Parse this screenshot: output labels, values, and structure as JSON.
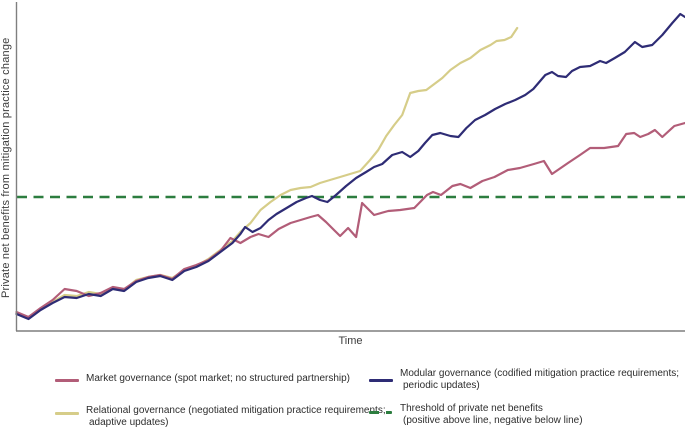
{
  "figure": {
    "xlabel": "Time",
    "ylabel": "Private net benefits from mitigation practice change"
  },
  "legend": {
    "position": "bottom",
    "items": [
      {
        "id": "market",
        "label_line1": "Market governance (spot market; no structured partnership)",
        "label_line2": "",
        "color": "#b25d78",
        "style": "solid"
      },
      {
        "id": "relational",
        "label_line1": "Relational governance (negotiated mitigation practice requirements;",
        "label_line2": "adaptive updates)",
        "color": "#d6cd89",
        "style": "solid"
      },
      {
        "id": "modular",
        "label_line1": "Modular governance (codified mitigation practice requirements;",
        "label_line2": "periodic updates)",
        "color": "#2e2c75",
        "style": "solid"
      },
      {
        "id": "threshold",
        "label_line1": "Threshold of private net benefits",
        "label_line2": "(positive above line, negative below line)",
        "color": "#2c7d3f",
        "style": "dashed"
      }
    ]
  },
  "chart_data": {
    "type": "line",
    "title": "",
    "xlabel": "Time",
    "ylabel": "Private net benefits from mitigation practice change",
    "x_axis": {
      "range": [
        0,
        100
      ],
      "ticks": "none",
      "unit": "time (arbitrary units)"
    },
    "y_axis": {
      "range": [
        -130,
        190
      ],
      "ticks": "none",
      "unit": "net benefit (arbitrary units; threshold = 0)"
    },
    "grid": false,
    "legend_position": "bottom",
    "threshold": {
      "name": "Threshold of private net benefits (positive above line, negative below line)",
      "value": 0,
      "color": "#2c7d3f",
      "style": "dashed"
    },
    "axis_color": "#7f7f7f",
    "series": [
      {
        "id": "relational",
        "name": "Relational governance (negotiated mitigation practice requirements; adaptive updates)",
        "color": "#d6cd89",
        "points": [
          [
            0,
            -116
          ],
          [
            1.8,
            -121
          ],
          [
            3.6,
            -112
          ],
          [
            5.4,
            -105
          ],
          [
            7.2,
            -98
          ],
          [
            9,
            -99
          ],
          [
            10.8,
            -95
          ],
          [
            12.6,
            -97
          ],
          [
            14.4,
            -91
          ],
          [
            16.1,
            -93
          ],
          [
            17.9,
            -83
          ],
          [
            19.7,
            -80
          ],
          [
            21.5,
            -78
          ],
          [
            23.3,
            -81
          ],
          [
            25.1,
            -73
          ],
          [
            26.9,
            -69
          ],
          [
            28.7,
            -62
          ],
          [
            30.5,
            -53
          ],
          [
            32.3,
            -44
          ],
          [
            33.5,
            -35
          ],
          [
            35,
            -26
          ],
          [
            36.5,
            -13
          ],
          [
            38,
            -5
          ],
          [
            39.5,
            2
          ],
          [
            41,
            7
          ],
          [
            42.5,
            9
          ],
          [
            44,
            10
          ],
          [
            45.4,
            14
          ],
          [
            46.9,
            17
          ],
          [
            48.4,
            20
          ],
          [
            49.9,
            23
          ],
          [
            51.4,
            26
          ],
          [
            52.9,
            37
          ],
          [
            54.1,
            47
          ],
          [
            55.3,
            61
          ],
          [
            56.5,
            72
          ],
          [
            57.7,
            82
          ],
          [
            58.9,
            104
          ],
          [
            60.1,
            106
          ],
          [
            61.3,
            107
          ],
          [
            62.5,
            113
          ],
          [
            63.7,
            119
          ],
          [
            64.9,
            127
          ],
          [
            66.4,
            134
          ],
          [
            67.9,
            139
          ],
          [
            69.4,
            147
          ],
          [
            70.9,
            152
          ],
          [
            71.8,
            156
          ],
          [
            73,
            157
          ],
          [
            74,
            160
          ],
          [
            74.9,
            169
          ]
        ]
      },
      {
        "id": "market",
        "name": "Market governance (spot market; no structured partnership)",
        "color": "#b25d78",
        "points": [
          [
            0,
            -115
          ],
          [
            1.8,
            -120
          ],
          [
            3.6,
            -111
          ],
          [
            5.4,
            -103
          ],
          [
            7.2,
            -92
          ],
          [
            9,
            -94
          ],
          [
            10.8,
            -99
          ],
          [
            12.6,
            -96
          ],
          [
            14.4,
            -90
          ],
          [
            16.1,
            -92
          ],
          [
            17.9,
            -84
          ],
          [
            19.7,
            -80
          ],
          [
            21.5,
            -78
          ],
          [
            23.3,
            -82
          ],
          [
            25.1,
            -72
          ],
          [
            26.9,
            -68
          ],
          [
            28.7,
            -63
          ],
          [
            30.5,
            -54
          ],
          [
            32,
            -41
          ],
          [
            33.5,
            -46
          ],
          [
            35,
            -40
          ],
          [
            36.2,
            -37
          ],
          [
            37.7,
            -40
          ],
          [
            39.2,
            -32
          ],
          [
            41,
            -26
          ],
          [
            42.5,
            -23
          ],
          [
            44,
            -20
          ],
          [
            45.1,
            -18
          ],
          [
            46.3,
            -25
          ],
          [
            47.5,
            -33
          ],
          [
            48.4,
            -39
          ],
          [
            49.6,
            -31
          ],
          [
            50.8,
            -40
          ],
          [
            51.7,
            -6
          ],
          [
            53.5,
            -18
          ],
          [
            55.6,
            -14
          ],
          [
            57.4,
            -13
          ],
          [
            59.5,
            -11
          ],
          [
            61.4,
            2
          ],
          [
            62.3,
            5
          ],
          [
            63.5,
            2
          ],
          [
            65.2,
            11
          ],
          [
            66.4,
            13
          ],
          [
            67.9,
            9
          ],
          [
            69.7,
            16
          ],
          [
            71.5,
            20
          ],
          [
            73.5,
            27
          ],
          [
            75.3,
            29
          ],
          [
            77.4,
            33
          ],
          [
            78.9,
            36
          ],
          [
            80.1,
            23
          ],
          [
            82.5,
            34
          ],
          [
            84.3,
            42
          ],
          [
            85.8,
            49
          ],
          [
            87.9,
            49
          ],
          [
            90,
            51
          ],
          [
            91.2,
            63
          ],
          [
            92.4,
            64
          ],
          [
            93.3,
            60
          ],
          [
            94.5,
            63
          ],
          [
            95.5,
            67
          ],
          [
            96.6,
            60
          ],
          [
            98.4,
            71
          ],
          [
            100,
            74
          ]
        ]
      },
      {
        "id": "modular",
        "name": "Modular governance (codified mitigation practice requirements; periodic updates)",
        "color": "#2e2c75",
        "points": [
          [
            0,
            -117
          ],
          [
            1.8,
            -122
          ],
          [
            3.6,
            -113
          ],
          [
            5.4,
            -106
          ],
          [
            7.2,
            -100
          ],
          [
            9,
            -101
          ],
          [
            10.8,
            -97
          ],
          [
            12.6,
            -99
          ],
          [
            14.4,
            -92
          ],
          [
            16.1,
            -94
          ],
          [
            17.9,
            -85
          ],
          [
            19.7,
            -81
          ],
          [
            21.5,
            -79
          ],
          [
            23.3,
            -83
          ],
          [
            25.1,
            -74
          ],
          [
            26.9,
            -70
          ],
          [
            28.7,
            -64
          ],
          [
            30.5,
            -55
          ],
          [
            32.3,
            -46
          ],
          [
            33.5,
            -37
          ],
          [
            34.2,
            -30
          ],
          [
            35.3,
            -35
          ],
          [
            36.5,
            -31
          ],
          [
            37.7,
            -23
          ],
          [
            38.9,
            -17
          ],
          [
            40.4,
            -11
          ],
          [
            41.9,
            -5
          ],
          [
            43.3,
            -1
          ],
          [
            44.2,
            1
          ],
          [
            45.4,
            -3
          ],
          [
            46.5,
            -5
          ],
          [
            47.8,
            2
          ],
          [
            49.3,
            11
          ],
          [
            50.8,
            19
          ],
          [
            52.3,
            25
          ],
          [
            53.5,
            30
          ],
          [
            54.7,
            33
          ],
          [
            56.2,
            42
          ],
          [
            57.7,
            45
          ],
          [
            58.9,
            40
          ],
          [
            60.1,
            46
          ],
          [
            61.1,
            54
          ],
          [
            62.2,
            62
          ],
          [
            63.4,
            64
          ],
          [
            64.9,
            61
          ],
          [
            66.1,
            60
          ],
          [
            67.3,
            69
          ],
          [
            68.6,
            77
          ],
          [
            70.1,
            82
          ],
          [
            71.6,
            88
          ],
          [
            73.1,
            93
          ],
          [
            74.6,
            97
          ],
          [
            76.1,
            102
          ],
          [
            77.3,
            108
          ],
          [
            79.1,
            122
          ],
          [
            80.1,
            125
          ],
          [
            81,
            121
          ],
          [
            82.2,
            120
          ],
          [
            83.1,
            126
          ],
          [
            84.3,
            130
          ],
          [
            85.8,
            131
          ],
          [
            87.3,
            136
          ],
          [
            88.2,
            134
          ],
          [
            89.5,
            139
          ],
          [
            91,
            145
          ],
          [
            92.5,
            155
          ],
          [
            93.6,
            150
          ],
          [
            95.1,
            152
          ],
          [
            96.6,
            162
          ],
          [
            98.1,
            174
          ],
          [
            99.3,
            183
          ],
          [
            100,
            180
          ]
        ]
      }
    ]
  }
}
